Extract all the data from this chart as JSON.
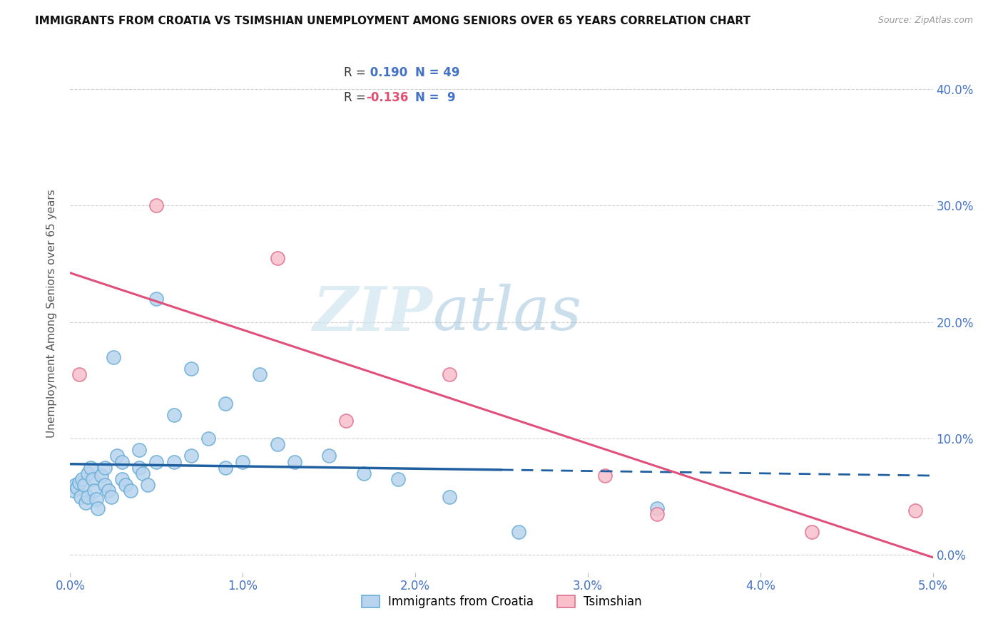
{
  "title": "IMMIGRANTS FROM CROATIA VS TSIMSHIAN UNEMPLOYMENT AMONG SENIORS OVER 65 YEARS CORRELATION CHART",
  "source": "Source: ZipAtlas.com",
  "ylabel": "Unemployment Among Seniors over 65 years",
  "xlim": [
    0.0,
    0.05
  ],
  "ylim": [
    -0.015,
    0.43
  ],
  "ytick_vals": [
    0.0,
    0.1,
    0.2,
    0.3,
    0.4
  ],
  "xtick_vals": [
    0.0,
    0.01,
    0.02,
    0.03,
    0.04,
    0.05
  ],
  "R_croatia": 0.19,
  "N_croatia": 49,
  "R_tsimshian": -0.136,
  "N_tsimshian": 9,
  "croatia_color": "#b8d4ee",
  "croatia_edge_color": "#6baed6",
  "tsimshian_color": "#f9c0cc",
  "tsimshian_edge_color": "#e07090",
  "trendline_croatia_color": "#2060a0",
  "trendline_tsimshian_color": "#e0507a",
  "watermark_zip": "ZIP",
  "watermark_atlas": "atlas",
  "croatia_x": [
    0.0002,
    0.0003,
    0.0004,
    0.0005,
    0.0006,
    0.0007,
    0.0008,
    0.0009,
    0.001,
    0.001,
    0.0012,
    0.0013,
    0.0014,
    0.0015,
    0.0016,
    0.0018,
    0.002,
    0.002,
    0.0022,
    0.0024,
    0.0025,
    0.0027,
    0.003,
    0.003,
    0.0032,
    0.0035,
    0.004,
    0.004,
    0.0042,
    0.0045,
    0.005,
    0.005,
    0.006,
    0.006,
    0.007,
    0.007,
    0.008,
    0.009,
    0.009,
    0.01,
    0.011,
    0.012,
    0.013,
    0.015,
    0.017,
    0.019,
    0.022,
    0.026,
    0.034
  ],
  "croatia_y": [
    0.055,
    0.06,
    0.058,
    0.062,
    0.05,
    0.065,
    0.06,
    0.045,
    0.07,
    0.05,
    0.075,
    0.065,
    0.055,
    0.048,
    0.04,
    0.068,
    0.075,
    0.06,
    0.055,
    0.05,
    0.17,
    0.085,
    0.08,
    0.065,
    0.06,
    0.055,
    0.09,
    0.075,
    0.07,
    0.06,
    0.22,
    0.08,
    0.12,
    0.08,
    0.16,
    0.085,
    0.1,
    0.13,
    0.075,
    0.08,
    0.155,
    0.095,
    0.08,
    0.085,
    0.07,
    0.065,
    0.05,
    0.02,
    0.04
  ],
  "tsimshian_x": [
    0.0005,
    0.005,
    0.012,
    0.016,
    0.022,
    0.031,
    0.034,
    0.043,
    0.049
  ],
  "tsimshian_y": [
    0.155,
    0.3,
    0.255,
    0.115,
    0.155,
    0.068,
    0.035,
    0.02,
    0.038
  ]
}
